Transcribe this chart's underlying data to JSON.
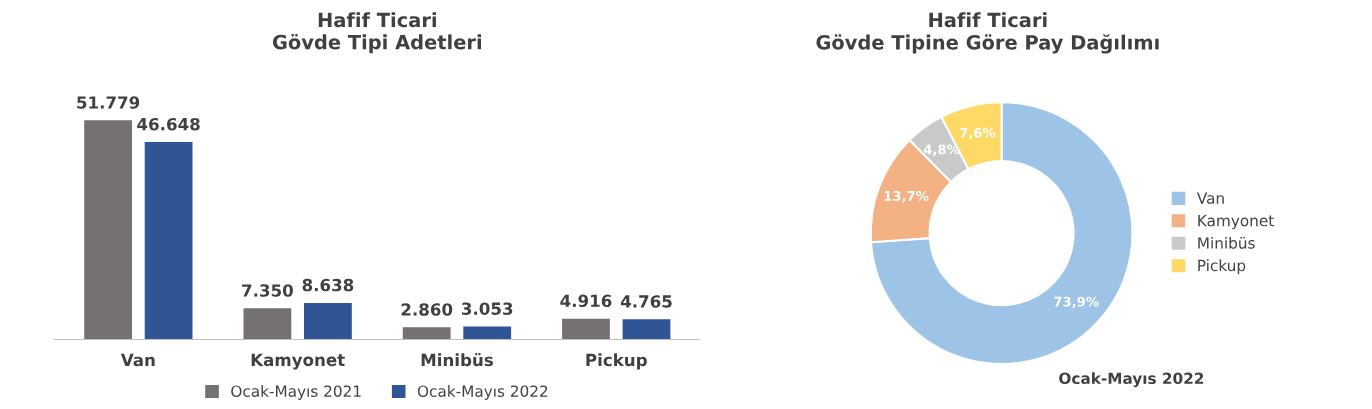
{
  "chart_data": [
    {
      "type": "bar",
      "title": "Hafif Ticari\nGövde Tipi Adetleri",
      "categories": [
        "Van",
        "Kamyonet",
        "Minibüs",
        "Pickup"
      ],
      "series": [
        {
          "name": "Ocak-Mayıs 2021",
          "color": "#767171",
          "values": [
            51779,
            7350,
            2860,
            4916
          ],
          "value_labels": [
            "51.779",
            "7.350",
            "2.860",
            "4.916"
          ]
        },
        {
          "name": "Ocak-Mayıs 2022",
          "color": "#2f5597",
          "values": [
            46648,
            8638,
            3053,
            4765
          ],
          "value_labels": [
            "46.648",
            "8.638",
            "3.053",
            "4.765"
          ]
        }
      ],
      "legend": "bottom",
      "grid": false
    },
    {
      "type": "donut",
      "title": "Hafif Ticari\nGövde Tipine Göre Pay Dağılımı",
      "categories": [
        "Van",
        "Kamyonet",
        "Minibüs",
        "Pickup"
      ],
      "values": [
        73.9,
        13.7,
        4.8,
        7.6
      ],
      "value_labels": [
        "73,9%",
        "13,7%",
        "4,8%",
        "7,6%"
      ],
      "colors": [
        "#9dc3e6",
        "#f4b183",
        "#c9c9c9",
        "#ffd966"
      ],
      "legend": "right",
      "annotations": [
        "Ocak-Mayıs 2022"
      ]
    }
  ]
}
